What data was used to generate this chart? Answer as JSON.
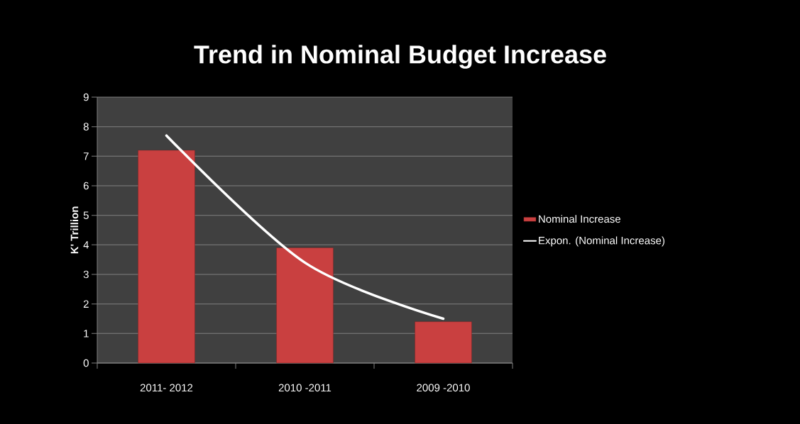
{
  "chart_data": {
    "type": "bar",
    "title": "Trend in Nominal Budget Increase",
    "ylabel": "K' Trillion",
    "categories": [
      "2011- 2012",
      "2010 -2011",
      "2009 -2010"
    ],
    "series": [
      {
        "name": "Nominal Increase",
        "color": "#c94040",
        "values": [
          7.2,
          3.9,
          1.4
        ]
      },
      {
        "name": "Expon. (Nominal Increase)",
        "type": "line",
        "color": "#ffffff",
        "values": [
          7.7,
          3.4,
          1.5
        ]
      }
    ],
    "ylim": [
      0,
      9
    ],
    "yticks": [
      0,
      1,
      2,
      3,
      4,
      5,
      6,
      7,
      8,
      9
    ],
    "grid": "y",
    "legend": "right"
  }
}
